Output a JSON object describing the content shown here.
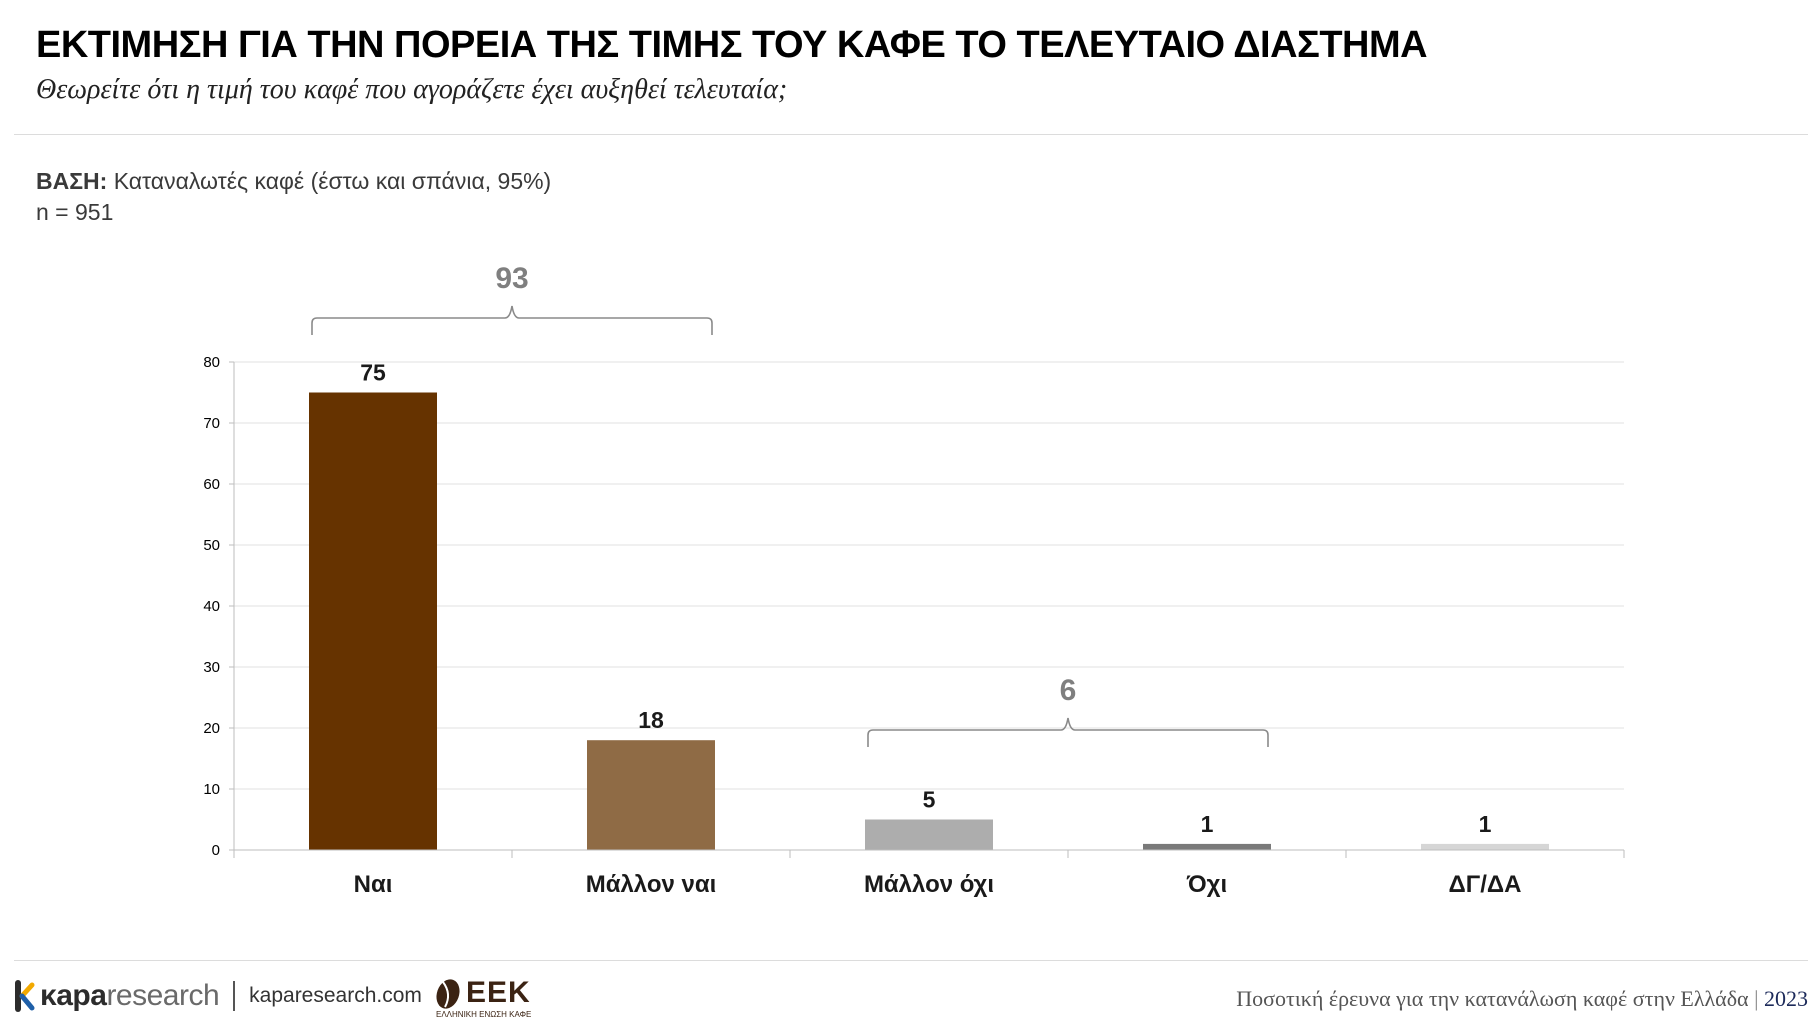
{
  "header": {
    "title": "ΕΚΤΙΜΗΣΗ ΓΙΑ ΤΗΝ ΠΟΡΕΙΑ ΤΗΣ ΤΙΜΗΣ ΤΟΥ ΚΑΦΕ ΤΟ ΤΕΛΕΥΤΑΙΟ ΔΙΑΣΤΗΜΑ",
    "subtitle": "Θεωρείτε ότι η τιμή του καφέ που αγοράζετε έχει αυξηθεί τελευταία;"
  },
  "base": {
    "label": "ΒΑΣΗ:",
    "text": "Καταναλωτές καφέ (έστω και σπάνια, 95%)",
    "n": "n = 951"
  },
  "chart_data": {
    "type": "bar",
    "categories": [
      "Ναι",
      "Μάλλον ναι",
      "Μάλλον όχι",
      "Όχι",
      "ΔΓ/ΔΑ"
    ],
    "values": [
      75,
      18,
      5,
      1,
      1
    ],
    "data_labels": [
      "75",
      "18",
      "5",
      "1",
      "1"
    ],
    "colors": [
      "#663300",
      "#8F6B45",
      "#ADADAD",
      "#7A7A7A",
      "#D6D6D6"
    ],
    "ylim": [
      0,
      80
    ],
    "yticks": [
      0,
      10,
      20,
      30,
      40,
      50,
      60,
      70,
      80
    ],
    "grid": true,
    "groups": [
      {
        "label": "93",
        "from": 0,
        "to": 1
      },
      {
        "label": "6",
        "from": 2,
        "to": 3
      }
    ],
    "title": "",
    "xlabel": "",
    "ylabel": ""
  },
  "footer": {
    "brand_bold": "κapa",
    "brand_light": "research",
    "url": "kaparesearch.com",
    "partner": "ΕΕΚ",
    "partner_sub": "ΕΛΛΗΝΙΚΗ ΕΝΩΣΗ ΚΑΦΕ",
    "survey": "Ποσοτική έρευνα για την κατανάλωση καφέ στην Ελλάδα",
    "year": "2023"
  }
}
